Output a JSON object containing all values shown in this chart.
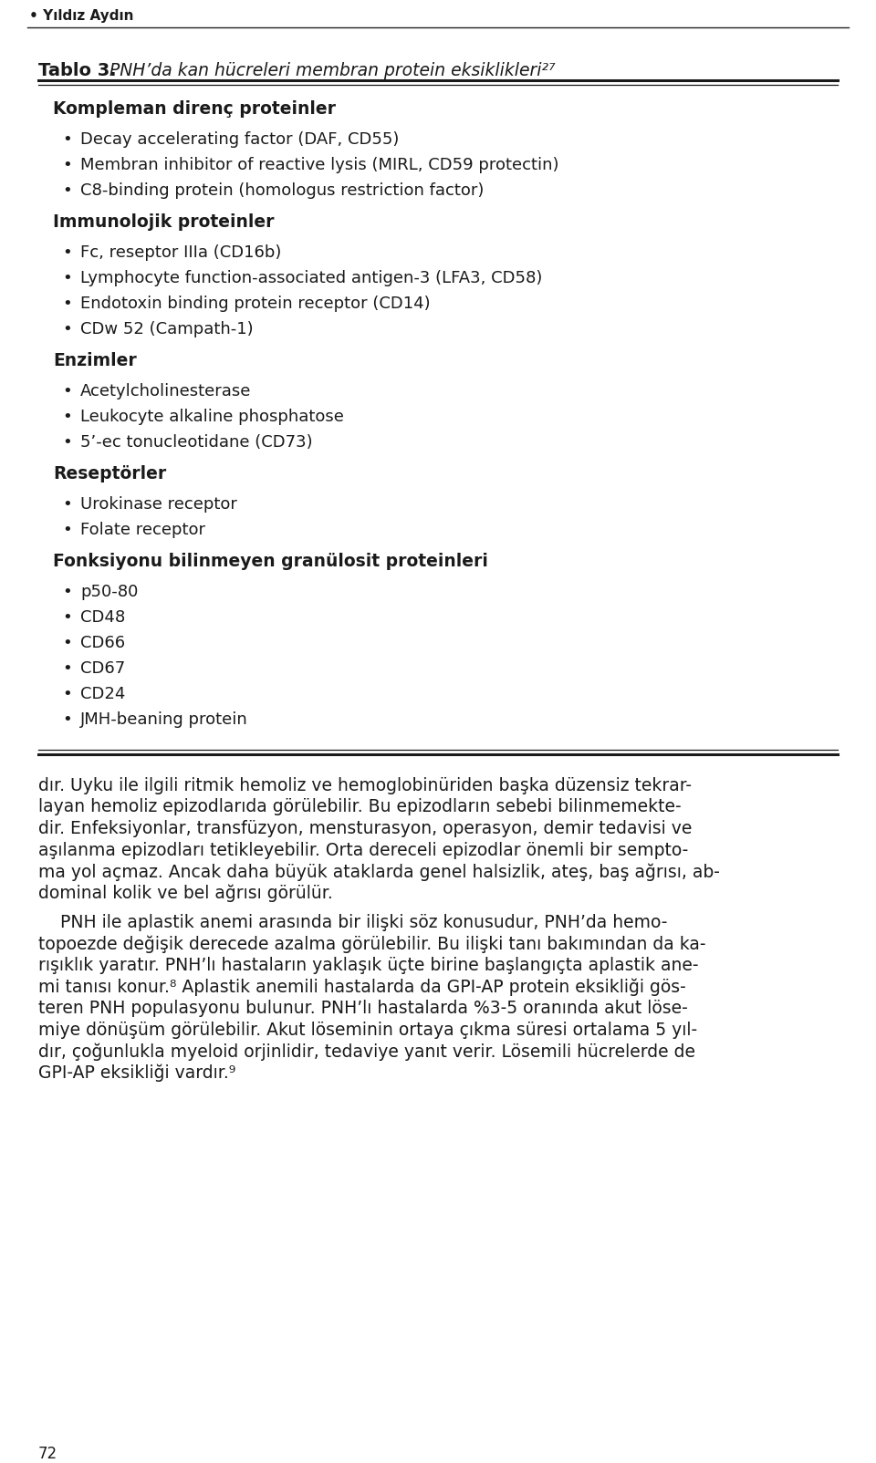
{
  "header_author": "• Yıldız Aydın",
  "title_bold": "Tablo 3.",
  "title_italic": " PNH’da kan hücreleri membran protein eksiklikleri²⁷",
  "bg_color": "#ffffff",
  "text_color": "#1a1a1a",
  "sections": [
    {
      "heading": "Kompleman direnç proteinler",
      "items": [
        "Decay accelerating factor (DAF, CD55)",
        "Membran inhibitor of reactive lysis (MIRL, CD59 protectin)",
        "C8-binding protein (homologus restriction factor)"
      ]
    },
    {
      "heading": "Immunolojik proteinler",
      "items": [
        "Fc, reseptor IIIa (CD16b)",
        "Lymphocyte function-associated antigen-3 (LFA3, CD58)",
        "Endotoxin binding protein receptor (CD14)",
        "CDw 52 (Campath-1)"
      ]
    },
    {
      "heading": "Enzimler",
      "items": [
        "Acetylcholinesterase",
        "Leukocyte alkaline phosphatose",
        "5’-ec tonucleotidane (CD73)"
      ]
    },
    {
      "heading": "Reseptörler",
      "items": [
        "Urokinase receptor",
        "Folate receptor"
      ]
    },
    {
      "heading": "Fonksiyonu bilinmeyen granülosit proteinleri",
      "items": [
        "p50-80",
        "CD48",
        "CD66",
        "CD67",
        "CD24",
        "JMH-beaning protein"
      ]
    }
  ],
  "body_lines": [
    "dır. Uyku ile ilgili ritmik hemoliz ve hemoglobinüriden başka düzensiz tekrar-",
    "layan hemoliz epizodlarıda görülebilir. Bu epizodların sebebi bilinmemekte-",
    "dir. Enfeksiyonlar, transfüzyon, mensturasyon, operasyon, demir tedavisi ve",
    "aşılanma epizodları tetikleyebilir. Orta dereceli epizodlar önemli bir sempto-",
    "ma yol açmaz. Ancak daha büyük ataklarda genel halsizlik, ateş, baş ağrısı, ab-",
    "dominal kolik ve bel ağrısı görülür.",
    "",
    "    PNH ile aplastik anemi arasında bir ilişki söz konusudur, PNH’da hemo-",
    "topoezde değişik derecede azalma görülebilir. Bu ilişki tanı bakımından da ka-",
    "rışıklık yaratır. PNH’lı hastaların yaklaşık üçte birine başlangıçta aplastik ane-",
    "mi tanısı konur.⁸ Aplastik anemili hastalarda da GPI-AP protein eksikliği gös-",
    "teren PNH populasyonu bulunur. PNH’lı hastalarda %3-5 oranında akut löse-",
    "miye dönüşüm görülebilir. Akut löseminin ortaya çıkma süresi ortalama 5 yıl-",
    "dır, çoğunlukla myeloid orjinlidir, tedaviye yanıt verir. Lösemili hücrelerde de",
    "GPI-AP eksikliği vardır.⁹"
  ],
  "page_number": "72",
  "heading_fontsize": 13.5,
  "item_fontsize": 13.0,
  "body_fontsize": 13.5,
  "header_fontsize": 11.0,
  "title_bold_fontsize": 14.0,
  "title_italic_fontsize": 13.5
}
